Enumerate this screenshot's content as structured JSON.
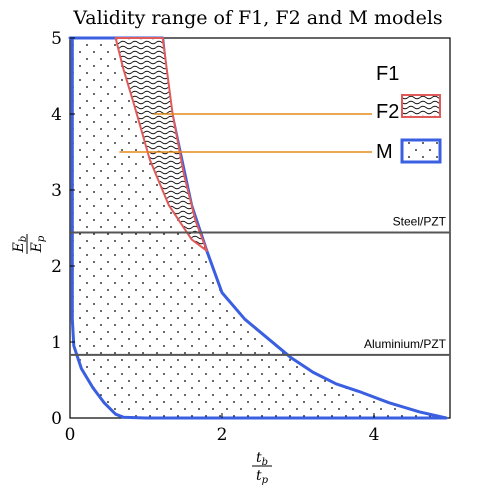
{
  "chart_data": {
    "type": "area",
    "title": "Validity range of F1, F2 and M models",
    "xlabel": "t_b/t_p",
    "ylabel": "E_b/E_p",
    "xlim": [
      0,
      5
    ],
    "ylim": [
      0,
      5
    ],
    "x_ticks": [
      "0",
      "2",
      "4"
    ],
    "x_tick_values": [
      0,
      2,
      4
    ],
    "y_ticks": [
      "0",
      "1",
      "2",
      "3",
      "4",
      "5"
    ],
    "y_tick_values": [
      0,
      1,
      2,
      3,
      4,
      5
    ],
    "grid": false,
    "legend_placement": "top-right",
    "legend": [
      {
        "label": "F1",
        "pattern": "wave",
        "edge_color": "#e05a5a"
      },
      {
        "label": "F2",
        "pattern": "wave",
        "edge_color": "#e05a5a"
      },
      {
        "label": "M",
        "pattern": "dots",
        "edge_color": "#3a5fe0"
      }
    ],
    "series": [
      {
        "name": "M",
        "edge_color": "#3a5fe0",
        "pattern": "dots",
        "x": [
          0.0,
          0.0,
          1.22,
          1.3,
          1.45,
          1.6,
          1.8,
          2.0,
          2.3,
          2.6,
          2.9,
          3.2,
          3.5,
          3.8,
          4.2,
          4.6,
          4.95,
          4.0,
          3.0,
          2.0,
          1.0,
          0.7,
          0.6,
          0.45,
          0.3,
          0.15,
          0.05,
          0.03,
          0.03,
          0.03
        ],
        "y": [
          5.0,
          5.0,
          5.0,
          4.2,
          3.5,
          2.8,
          2.2,
          1.65,
          1.3,
          1.05,
          0.8,
          0.6,
          0.45,
          0.35,
          0.2,
          0.08,
          0.0,
          0.0,
          0.0,
          0.0,
          0.0,
          0.01,
          0.05,
          0.2,
          0.4,
          0.65,
          0.95,
          1.3,
          3.0,
          5.0
        ]
      },
      {
        "name": "F2",
        "edge_color": "#e05a5a",
        "pattern": "wave",
        "x": [
          0.6,
          1.22,
          1.35,
          1.5,
          1.65,
          1.8,
          1.6,
          1.3,
          1.05,
          0.85,
          0.7,
          0.6
        ],
        "y": [
          5.0,
          5.0,
          4.0,
          3.2,
          2.6,
          2.2,
          2.35,
          2.8,
          3.4,
          4.1,
          4.6,
          5.0
        ]
      }
    ],
    "reference_lines": [
      {
        "label": "Steel/PZT",
        "y": 2.44
      },
      {
        "label": "Aluminium/PZT",
        "y": 0.83
      }
    ],
    "annotation_lines": [
      {
        "from_x": 1.1,
        "from_y": 4.0,
        "to": "legend-F2"
      },
      {
        "from_x": 0.65,
        "from_y": 3.5,
        "to": "legend-M"
      }
    ]
  }
}
